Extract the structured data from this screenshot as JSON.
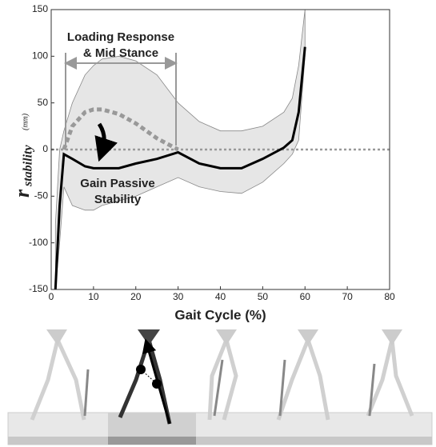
{
  "chart_data": {
    "type": "line",
    "x_label": "Gait Cycle (%)",
    "y_label": {
      "symbol": "r",
      "subscript": "stability",
      "unit": "(mm)"
    },
    "x": [
      1,
      2,
      3,
      5,
      8,
      10,
      12,
      16,
      20,
      25,
      30,
      35,
      40,
      45,
      50,
      55,
      57,
      58.5,
      60
    ],
    "band": {
      "color": "#e6e6e6",
      "upper": [
        -80,
        0,
        20,
        50,
        80,
        90,
        97,
        100,
        95,
        80,
        50,
        30,
        20,
        20,
        25,
        40,
        55,
        90,
        150
      ],
      "lower": [
        -150,
        -100,
        -40,
        -60,
        -65,
        -65,
        -60,
        -55,
        -50,
        -40,
        -30,
        -40,
        -45,
        -47,
        -35,
        -15,
        -5,
        10,
        100
      ]
    },
    "series": [
      {
        "color": "#000000",
        "dashed": false,
        "values": [
          -150,
          -60,
          -5,
          -10,
          -18,
          -20,
          -20,
          -20,
          -15,
          -10,
          -3,
          -15,
          -20,
          -20,
          -10,
          2,
          10,
          40,
          110
        ]
      },
      {
        "color": "#999999",
        "dashed": true,
        "values": [
          null,
          null,
          0,
          25,
          40,
          43,
          43,
          38,
          28,
          12,
          0,
          null,
          null,
          null,
          null,
          null,
          null,
          null,
          null
        ]
      }
    ],
    "xlim": [
      0,
      80
    ],
    "xticks": [
      0,
      10,
      20,
      30,
      40,
      50,
      60,
      70,
      80
    ],
    "ylim": [
      -150,
      150
    ],
    "yticks": [
      -150,
      -100,
      -50,
      0,
      50,
      100,
      150
    ],
    "zero_line": true,
    "annotations": [
      {
        "lines": [
          "Loading Response",
          "& Mid Stance"
        ]
      },
      {
        "lines": [
          "Gain Passive",
          "Stability"
        ]
      }
    ]
  }
}
